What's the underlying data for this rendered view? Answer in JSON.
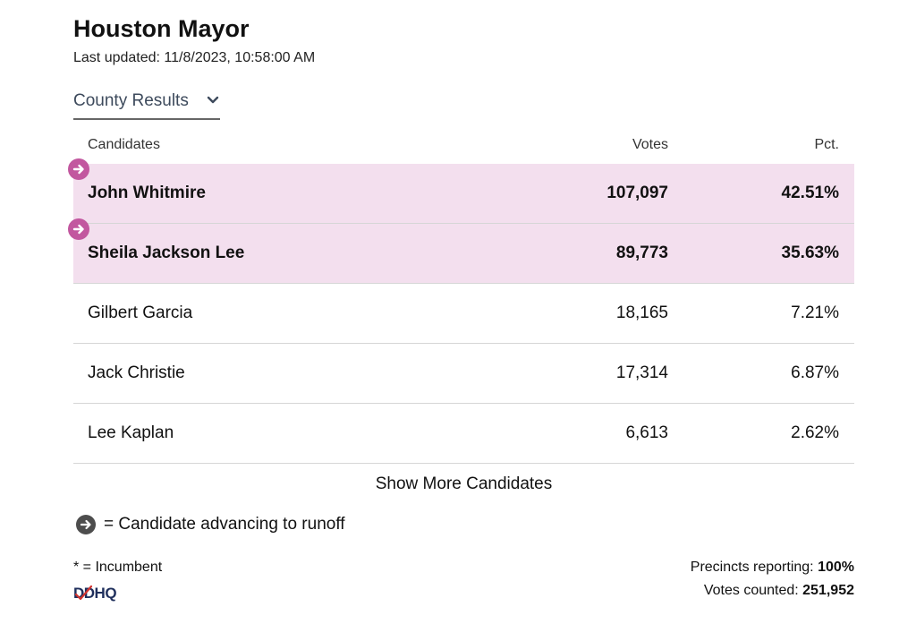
{
  "header": {
    "title": "Houston Mayor",
    "last_updated": "Last updated: 11/8/2023, 10:58:00 AM"
  },
  "dropdown": {
    "selected": "County Results",
    "icon": "chevron-down-icon"
  },
  "table": {
    "headers": {
      "name": "Candidates",
      "votes": "Votes",
      "pct": "Pct."
    },
    "rows": [
      {
        "name": "John Whitmire",
        "votes": "107,097",
        "pct": "42.51%",
        "advancing": true
      },
      {
        "name": "Sheila Jackson Lee",
        "votes": "89,773",
        "pct": "35.63%",
        "advancing": true
      },
      {
        "name": "Gilbert Garcia",
        "votes": "18,165",
        "pct": "7.21%",
        "advancing": false
      },
      {
        "name": "Jack Christie",
        "votes": "17,314",
        "pct": "6.87%",
        "advancing": false
      },
      {
        "name": "Lee Kaplan",
        "votes": "6,613",
        "pct": "2.62%",
        "advancing": false
      }
    ]
  },
  "show_more": "Show More Candidates",
  "legend": {
    "text": "= Candidate advancing to runoff",
    "icon": "arrow-right-circle-icon"
  },
  "footer": {
    "incumbent_note": "* = Incumbent",
    "logo_text": "DDHQ",
    "precincts_label": "Precincts reporting:",
    "precincts_value": "100%",
    "votes_label": "Votes counted:",
    "votes_value": "251,952"
  },
  "colors": {
    "winner_row_bg": "#f3dfee",
    "advance_icon": "#c2579f",
    "legend_icon": "#4d4d4d",
    "logo_blue": "#1f2f5c",
    "logo_red": "#d0312d"
  }
}
